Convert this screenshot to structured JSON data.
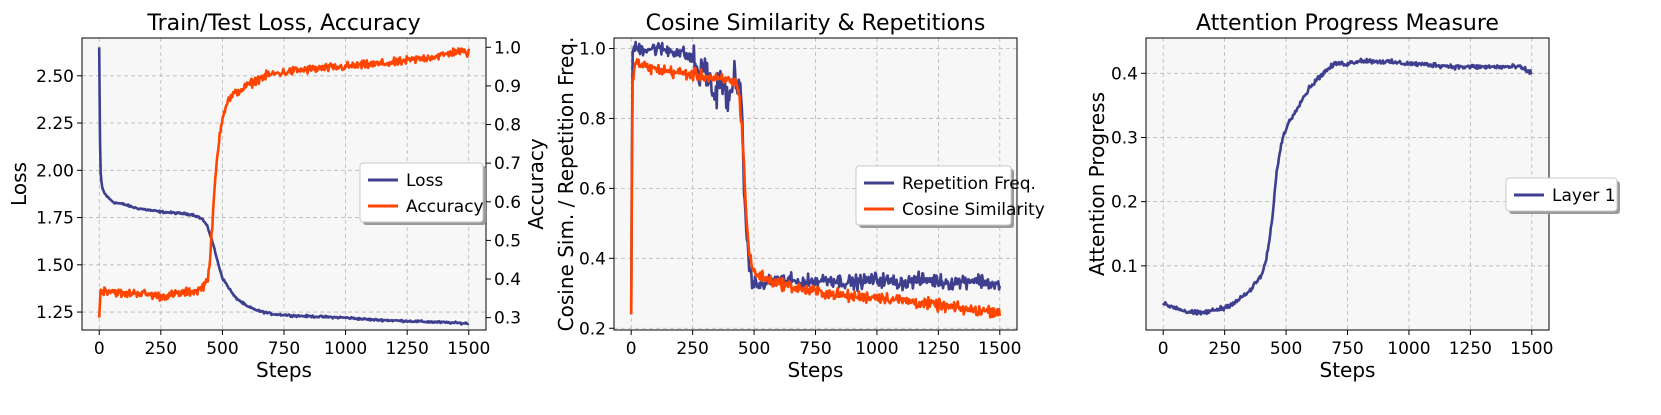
{
  "chart_data": [
    {
      "type": "line",
      "title": "Train/Test Loss, Accuracy",
      "xlabel": "Steps",
      "ylabel": "Loss",
      "y2label": "Accuracy",
      "xlim": [
        -70,
        1570
      ],
      "ylim": [
        1.155,
        2.7
      ],
      "y2lim": [
        0.268,
        1.024
      ],
      "xticks": [
        0,
        250,
        500,
        750,
        1000,
        1250,
        1500
      ],
      "yticks": [
        1.25,
        1.5,
        1.75,
        2.0,
        2.25,
        2.5
      ],
      "ytick_labels": [
        "1.25",
        "1.50",
        "1.75",
        "2.00",
        "2.25",
        "2.50"
      ],
      "y2ticks": [
        0.3,
        0.4,
        0.5,
        0.6,
        0.7,
        0.8,
        0.9,
        1.0
      ],
      "y2tick_labels": [
        "0.3",
        "0.4",
        "0.5",
        "0.6",
        "0.7",
        "0.8",
        "0.9",
        "1.0"
      ],
      "grid": true,
      "legend": "center-right",
      "series": [
        {
          "name": "Loss",
          "color": "#3f3f8f",
          "axis": "left",
          "x": [
            0,
            2,
            5,
            10,
            20,
            40,
            60,
            100,
            150,
            200,
            250,
            300,
            350,
            380,
            400,
            420,
            440,
            460,
            480,
            500,
            550,
            600,
            650,
            700,
            750,
            800,
            900,
            1000,
            1100,
            1200,
            1300,
            1400,
            1500
          ],
          "y": [
            2.65,
            2.25,
            2.0,
            1.92,
            1.88,
            1.85,
            1.83,
            1.82,
            1.8,
            1.79,
            1.78,
            1.775,
            1.77,
            1.765,
            1.755,
            1.74,
            1.7,
            1.62,
            1.52,
            1.43,
            1.33,
            1.28,
            1.255,
            1.24,
            1.235,
            1.23,
            1.225,
            1.22,
            1.21,
            1.205,
            1.2,
            1.195,
            1.19
          ]
        },
        {
          "name": "Accuracy",
          "color": "#ff4500",
          "axis": "right",
          "x": [
            0,
            5,
            50,
            100,
            150,
            200,
            250,
            300,
            350,
            400,
            420,
            440,
            450,
            460,
            470,
            480,
            490,
            500,
            520,
            550,
            600,
            650,
            700,
            750,
            800,
            900,
            1000,
            1100,
            1200,
            1300,
            1400,
            1450,
            1500
          ],
          "y": [
            0.3,
            0.37,
            0.37,
            0.36,
            0.365,
            0.36,
            0.355,
            0.36,
            0.365,
            0.37,
            0.38,
            0.4,
            0.45,
            0.55,
            0.65,
            0.72,
            0.78,
            0.82,
            0.86,
            0.88,
            0.9,
            0.92,
            0.93,
            0.935,
            0.94,
            0.945,
            0.95,
            0.955,
            0.96,
            0.97,
            0.98,
            0.99,
            0.985
          ]
        }
      ]
    },
    {
      "type": "line",
      "title": "Cosine Similarity & Repetitions",
      "xlabel": "Steps",
      "ylabel": "Cosine Sim. / Repetition Freq.",
      "xlim": [
        -70,
        1570
      ],
      "ylim": [
        0.195,
        1.03
      ],
      "xticks": [
        0,
        250,
        500,
        750,
        1000,
        1250,
        1500
      ],
      "yticks": [
        0.2,
        0.4,
        0.6,
        0.8,
        1.0
      ],
      "ytick_labels": [
        "0.2",
        "0.4",
        "0.6",
        "0.8",
        "1.0"
      ],
      "grid": true,
      "legend": "center-right",
      "series": [
        {
          "name": "Repetition Freq.",
          "color": "#3f3f8f",
          "x": [
            0,
            5,
            10,
            30,
            100,
            200,
            250,
            280,
            300,
            320,
            340,
            360,
            380,
            400,
            420,
            440,
            450,
            460,
            470,
            480,
            490,
            500,
            520,
            550,
            600,
            700,
            800,
            900,
            1000,
            1100,
            1200,
            1300,
            1400,
            1500
          ],
          "y": [
            0.24,
            0.99,
            1.0,
            1.0,
            1.0,
            0.99,
            0.97,
            0.92,
            0.95,
            0.9,
            0.86,
            0.92,
            0.88,
            0.84,
            0.93,
            0.9,
            0.8,
            0.6,
            0.46,
            0.38,
            0.34,
            0.33,
            0.32,
            0.33,
            0.34,
            0.33,
            0.34,
            0.33,
            0.34,
            0.33,
            0.34,
            0.33,
            0.34,
            0.32
          ]
        },
        {
          "name": "Cosine Similarity",
          "color": "#ff4500",
          "x": [
            0,
            5,
            10,
            20,
            50,
            100,
            200,
            300,
            350,
            400,
            430,
            440,
            450,
            460,
            470,
            480,
            490,
            500,
            550,
            600,
            700,
            800,
            900,
            1000,
            1100,
            1200,
            1300,
            1400,
            1500
          ],
          "y": [
            0.24,
            0.9,
            0.94,
            0.96,
            0.95,
            0.94,
            0.93,
            0.92,
            0.91,
            0.91,
            0.9,
            0.86,
            0.78,
            0.65,
            0.5,
            0.42,
            0.38,
            0.36,
            0.34,
            0.33,
            0.31,
            0.3,
            0.29,
            0.29,
            0.28,
            0.27,
            0.26,
            0.25,
            0.25
          ]
        }
      ]
    },
    {
      "type": "line",
      "title": "Attention Progress Measure",
      "xlabel": "Steps",
      "ylabel": "Attention Progress",
      "xlim": [
        -70,
        1570
      ],
      "ylim": [
        0.0,
        0.455
      ],
      "xticks": [
        0,
        250,
        500,
        750,
        1000,
        1250,
        1500
      ],
      "yticks": [
        0.1,
        0.2,
        0.3,
        0.4
      ],
      "ytick_labels": [
        "0.1",
        "0.2",
        "0.3",
        "0.4"
      ],
      "grid": true,
      "legend": "center-right",
      "series": [
        {
          "name": "Layer 1",
          "color": "#3f3f8f",
          "x": [
            0,
            50,
            100,
            150,
            200,
            250,
            300,
            350,
            400,
            420,
            440,
            460,
            480,
            500,
            550,
            600,
            650,
            700,
            750,
            800,
            900,
            1000,
            1100,
            1200,
            1300,
            1400,
            1450,
            1500
          ],
          "y": [
            0.04,
            0.035,
            0.028,
            0.026,
            0.03,
            0.035,
            0.045,
            0.06,
            0.085,
            0.11,
            0.16,
            0.24,
            0.29,
            0.315,
            0.35,
            0.38,
            0.4,
            0.415,
            0.415,
            0.42,
            0.418,
            0.415,
            0.413,
            0.41,
            0.41,
            0.41,
            0.41,
            0.4
          ]
        }
      ]
    }
  ]
}
